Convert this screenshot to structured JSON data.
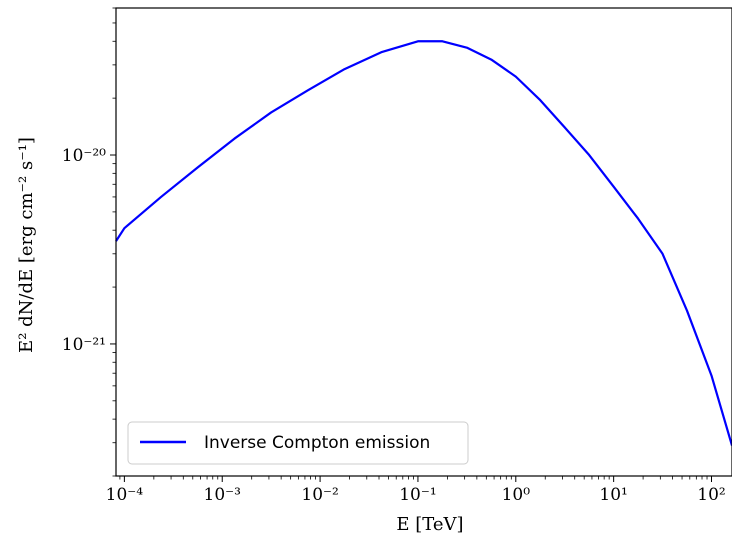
{
  "chart_data": {
    "type": "line",
    "xscale": "log",
    "yscale": "log",
    "xlabel": "E [TeV]",
    "ylabel": "E² dN/dE [erg cm⁻² s⁻¹]",
    "xlim": [
      8.21e-05,
      162
    ],
    "ylim": [
      2e-22,
      6e-20
    ],
    "x_tick_labels": [
      "10⁻⁴",
      "10⁻³",
      "10⁻²",
      "10⁻¹",
      "10⁰",
      "10¹",
      "10²"
    ],
    "y_tick_labels": [
      "10⁻²¹",
      "10⁻²⁰"
    ],
    "grid": false,
    "legend_position": "lower-left",
    "series": [
      {
        "name": "Inverse Compton emission",
        "color": "#0000ff",
        "x": [
          8.21e-05,
          0.0001,
          0.000237,
          0.000562,
          0.00133,
          0.00316,
          0.0075,
          0.0178,
          0.0422,
          0.1,
          0.178,
          0.316,
          0.562,
          1.0,
          1.78,
          3.16,
          5.62,
          10,
          17.8,
          31.6,
          56.2,
          100,
          162
        ],
        "values": [
          3.5e-21,
          4.1e-21,
          6e-21,
          8.6e-21,
          1.22e-20,
          1.68e-20,
          2.2e-20,
          2.85e-20,
          3.5e-20,
          4e-20,
          4e-20,
          3.7e-20,
          3.2e-20,
          2.6e-20,
          1.95e-20,
          1.4e-20,
          1e-20,
          6.8e-21,
          4.6e-21,
          3e-21,
          1.5e-21,
          6.8e-22,
          2.9e-22
        ]
      }
    ]
  }
}
